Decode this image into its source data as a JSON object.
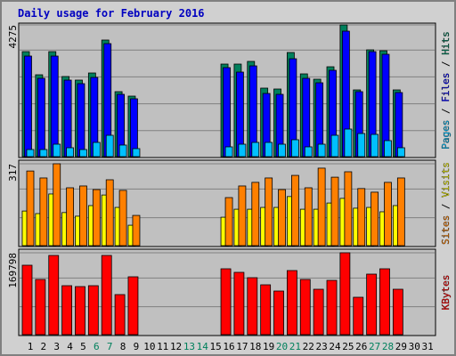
{
  "chart_data": {
    "type": "bar",
    "title": "Daily usage for February 2016",
    "categories": [
      "1",
      "2",
      "3",
      "4",
      "5",
      "6",
      "7",
      "8",
      "9",
      "10",
      "11",
      "12",
      "13",
      "14",
      "15",
      "16",
      "17",
      "18",
      "19",
      "20",
      "21",
      "22",
      "23",
      "24",
      "25",
      "26",
      "27",
      "28",
      "29",
      "30",
      "31"
    ],
    "category_colors": [
      "#000000",
      "#000000",
      "#000000",
      "#000000",
      "#000000",
      "#00805c",
      "#00805c",
      "#000000",
      "#000000",
      "#000000",
      "#000000",
      "#000000",
      "#00805c",
      "#00805c",
      "#000000",
      "#000000",
      "#000000",
      "#000000",
      "#000000",
      "#00805c",
      "#00805c",
      "#000000",
      "#000000",
      "#000000",
      "#000000",
      "#000000",
      "#00805c",
      "#00805c",
      "#000000",
      "#000000",
      "#000000"
    ],
    "legend_separator": " / ",
    "panels": [
      {
        "ylim": [
          0,
          4275
        ],
        "yticks": [
          4275
        ],
        "series": [
          {
            "name": "Pages",
            "color": "#00c0ff",
            "values": [
              231,
              231,
              404,
              289,
              231,
              462,
              693,
              376,
              260,
              null,
              null,
              null,
              null,
              null,
              null,
              318,
              404,
              462,
              462,
              404,
              549,
              318,
              404,
              693,
              895,
              751,
              722,
              520,
              289,
              null,
              null
            ]
          },
          {
            "name": "Files",
            "color": "#0000ff",
            "values": [
              3264,
              2542,
              3264,
              2484,
              2369,
              2571,
              3668,
              2022,
              1878,
              null,
              null,
              null,
              null,
              null,
              null,
              2889,
              2744,
              2946,
              2051,
              2022,
              3177,
              2542,
              2397,
              2802,
              4073,
              2109,
              3408,
              3322,
              2080,
              null,
              null
            ]
          },
          {
            "name": "Hits",
            "color": "#00805c",
            "values": [
              3408,
              2657,
              3408,
              2600,
              2484,
              2715,
              3784,
              2109,
              1964,
              null,
              null,
              null,
              null,
              null,
              null,
              3004,
              3004,
              3091,
              2224,
              2195,
              3380,
              2686,
              2513,
              2917,
              4275,
              2166,
              3466,
              3437,
              2166,
              null,
              null
            ]
          }
        ]
      },
      {
        "ylim": [
          0,
          317
        ],
        "yticks": [
          317
        ],
        "series": [
          {
            "name": "Sites",
            "color": "#ff8000",
            "values": [
              289,
              262,
              317,
              224,
              231,
              217,
              255,
              214,
              117,
              null,
              null,
              null,
              null,
              null,
              null,
              186,
              231,
              245,
              262,
              217,
              272,
              224,
              300,
              265,
              286,
              221,
              207,
              245,
              262,
              null,
              null
            ]
          },
          {
            "name": "Visits",
            "color": "#ffff00",
            "values": [
              134,
              124,
              200,
              128,
              114,
              155,
              196,
              148,
              79,
              null,
              null,
              null,
              null,
              null,
              null,
              110,
              141,
              141,
              148,
              148,
              190,
              141,
              141,
              165,
              183,
              145,
              148,
              131,
              155,
              null,
              null
            ]
          }
        ]
      },
      {
        "ylim": [
          0,
          169798
        ],
        "yticks": [
          169798
        ],
        "series": [
          {
            "name": "KBytes",
            "color": "#ff0000",
            "values": [
              143957,
              114427,
              164258,
              101508,
              99662,
              101508,
              164258,
              83052,
              119964,
              null,
              null,
              null,
              null,
              null,
              null,
              136574,
              129192,
              118118,
              103354,
              90434,
              132883,
              114427,
              94126,
              112582,
              169798,
              77515,
              125501,
              136574,
              94126,
              null,
              null
            ]
          }
        ]
      }
    ]
  }
}
